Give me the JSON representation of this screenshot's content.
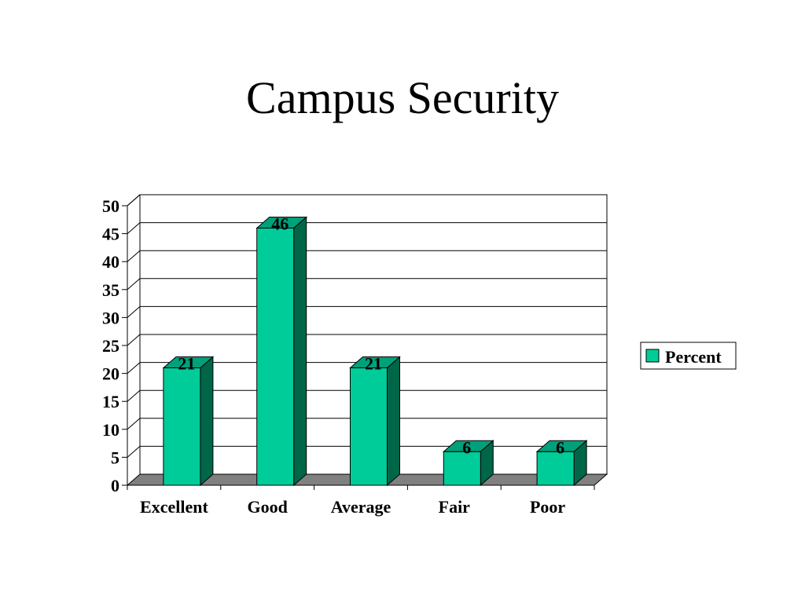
{
  "title": "Campus Security",
  "chart_data": {
    "type": "bar",
    "title": "Campus Security",
    "categories": [
      "Excellent",
      "Good",
      "Average",
      "Fair",
      "Poor"
    ],
    "series": [
      {
        "name": "Percent",
        "values": [
          21,
          46,
          21,
          6,
          6
        ]
      }
    ],
    "data_labels": [
      "21",
      "46",
      "21",
      "6",
      "6"
    ],
    "y_ticks": [
      0,
      5,
      10,
      15,
      20,
      25,
      30,
      35,
      40,
      45,
      50
    ],
    "ylim": [
      0,
      50
    ],
    "xlabel": "",
    "ylabel": "",
    "grid": true,
    "three_d": true,
    "legend_position": "right",
    "colors": {
      "bar_front": "#00cc99",
      "bar_top": "#00a07a",
      "bar_side": "#006648",
      "floor": "#808080",
      "legend_swatch": "#00cc99"
    }
  }
}
